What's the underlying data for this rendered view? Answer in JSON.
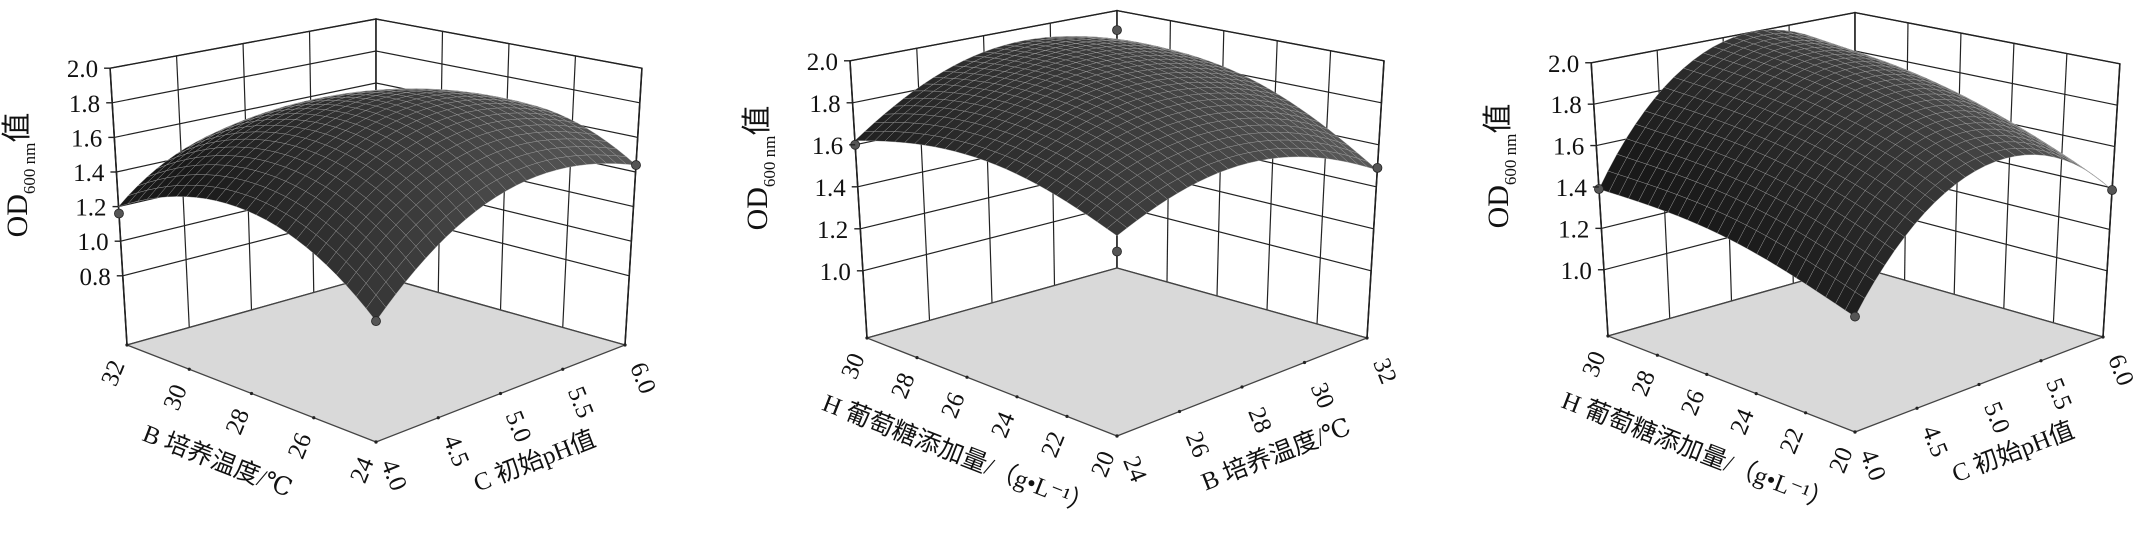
{
  "colors": {
    "surface": "#363636",
    "mesh": "#a8a8a8",
    "floor": "#d9d9d9",
    "frame": "#222222",
    "wall": "#ffffff",
    "point": "#555555"
  },
  "chart_data": [
    {
      "type": "surface3d",
      "grid_walls": true,
      "x_axis": {
        "label": "B 培养温度/℃",
        "min": 24,
        "max": 32,
        "ticks": [
          "24",
          "26",
          "28",
          "30",
          "32"
        ]
      },
      "y_axis": {
        "label": "C 初始pH值",
        "min": 4.0,
        "max": 6.0,
        "ticks": [
          "4.0",
          "4.5",
          "5.0",
          "5.5",
          "6.0"
        ]
      },
      "z_axis": {
        "label_main": "OD",
        "label_sub": "600 nm",
        "label_suffix": "值",
        "range": [
          0.4,
          2.0
        ],
        "ticks": [
          "0.8",
          "1.0",
          "1.2",
          "1.4",
          "1.6",
          "1.8",
          "2.0"
        ]
      },
      "surface": {
        "x": [
          24,
          26,
          28,
          30,
          32
        ],
        "y": [
          4.0,
          4.5,
          5.0,
          5.5,
          6.0
        ],
        "z": [
          [
            1.05,
            1.36,
            1.53,
            1.55,
            1.44
          ],
          [
            1.31,
            1.6,
            1.75,
            1.75,
            1.62
          ],
          [
            1.42,
            1.69,
            1.82,
            1.81,
            1.66
          ],
          [
            1.38,
            1.64,
            1.75,
            1.72,
            1.55
          ],
          [
            1.2,
            1.44,
            1.53,
            1.49,
            1.3
          ]
        ]
      },
      "design_points": [
        {
          "x": 32,
          "y": 4.0,
          "z": 1.16
        },
        {
          "x": 24,
          "y": 6.0,
          "z": 1.44
        },
        {
          "x": 24,
          "y": 4.0,
          "z": 1.05
        }
      ]
    },
    {
      "type": "surface3d",
      "grid_walls": true,
      "x_axis": {
        "label": "H 葡萄糖添加量/（g•L⁻¹）",
        "min": 20,
        "max": 30,
        "ticks": [
          "20",
          "22",
          "24",
          "26",
          "28",
          "30"
        ]
      },
      "y_axis": {
        "label": "B 培养温度/℃",
        "min": 24,
        "max": 32,
        "ticks": [
          "24",
          "26",
          "28",
          "30",
          "32"
        ]
      },
      "z_axis": {
        "label_main": "OD",
        "label_sub": "600 nm",
        "label_suffix": "值",
        "range": [
          0.68,
          2.0
        ],
        "ticks": [
          "1.0",
          "1.2",
          "1.4",
          "1.6",
          "1.8",
          "2.0"
        ]
      },
      "surface": {
        "x": [
          20,
          22.5,
          25,
          27.5,
          30
        ],
        "y": [
          24,
          26,
          28,
          30,
          32
        ],
        "z": [
          [
            1.57,
            1.68,
            1.71,
            1.64,
            1.48
          ],
          [
            1.67,
            1.81,
            1.85,
            1.8,
            1.66
          ],
          [
            1.72,
            1.87,
            1.93,
            1.9,
            1.79
          ],
          [
            1.7,
            1.87,
            1.95,
            1.95,
            1.85
          ],
          [
            1.62,
            1.81,
            1.92,
            1.93,
            1.85
          ]
        ]
      },
      "design_points": [
        {
          "x": 30,
          "y": 24,
          "z": 1.6
        },
        {
          "x": 20,
          "y": 32,
          "z": 1.49
        },
        {
          "x": 20,
          "y": 24,
          "z": 1.5
        },
        {
          "x": 30,
          "y": 32,
          "z": 1.9
        }
      ]
    },
    {
      "type": "surface3d",
      "grid_walls": true,
      "x_axis": {
        "label": "H 葡萄糖添加量/（g•L⁻¹）",
        "min": 20,
        "max": 30,
        "ticks": [
          "20",
          "22",
          "24",
          "26",
          "28",
          "30"
        ]
      },
      "y_axis": {
        "label": "C 初始pH值",
        "min": 4.0,
        "max": 6.0,
        "ticks": [
          "4.0",
          "4.5",
          "5.0",
          "5.5",
          "6.0"
        ]
      },
      "z_axis": {
        "label_main": "OD",
        "label_sub": "600 nm",
        "label_suffix": "值",
        "range": [
          0.68,
          2.0
        ],
        "ticks": [
          "1.0",
          "1.2",
          "1.4",
          "1.6",
          "1.8",
          "2.0"
        ]
      },
      "surface": {
        "x": [
          20,
          22.5,
          25,
          27.5,
          30
        ],
        "y": [
          4.0,
          4.5,
          5.0,
          5.5,
          6.0
        ],
        "z": [
          [
            1.2,
            1.55,
            1.7,
            1.65,
            1.39
          ],
          [
            1.29,
            1.66,
            1.82,
            1.77,
            1.53
          ],
          [
            1.36,
            1.73,
            1.9,
            1.87,
            1.63
          ],
          [
            1.39,
            1.77,
            1.95,
            1.93,
            1.71
          ],
          [
            1.39,
            1.79,
            1.98,
            1.97,
            1.75
          ]
        ]
      },
      "design_points": [
        {
          "x": 30,
          "y": 4.0,
          "z": 1.39
        },
        {
          "x": 20,
          "y": 6.0,
          "z": 1.39
        },
        {
          "x": 20,
          "y": 4.0,
          "z": 1.2
        }
      ]
    }
  ]
}
